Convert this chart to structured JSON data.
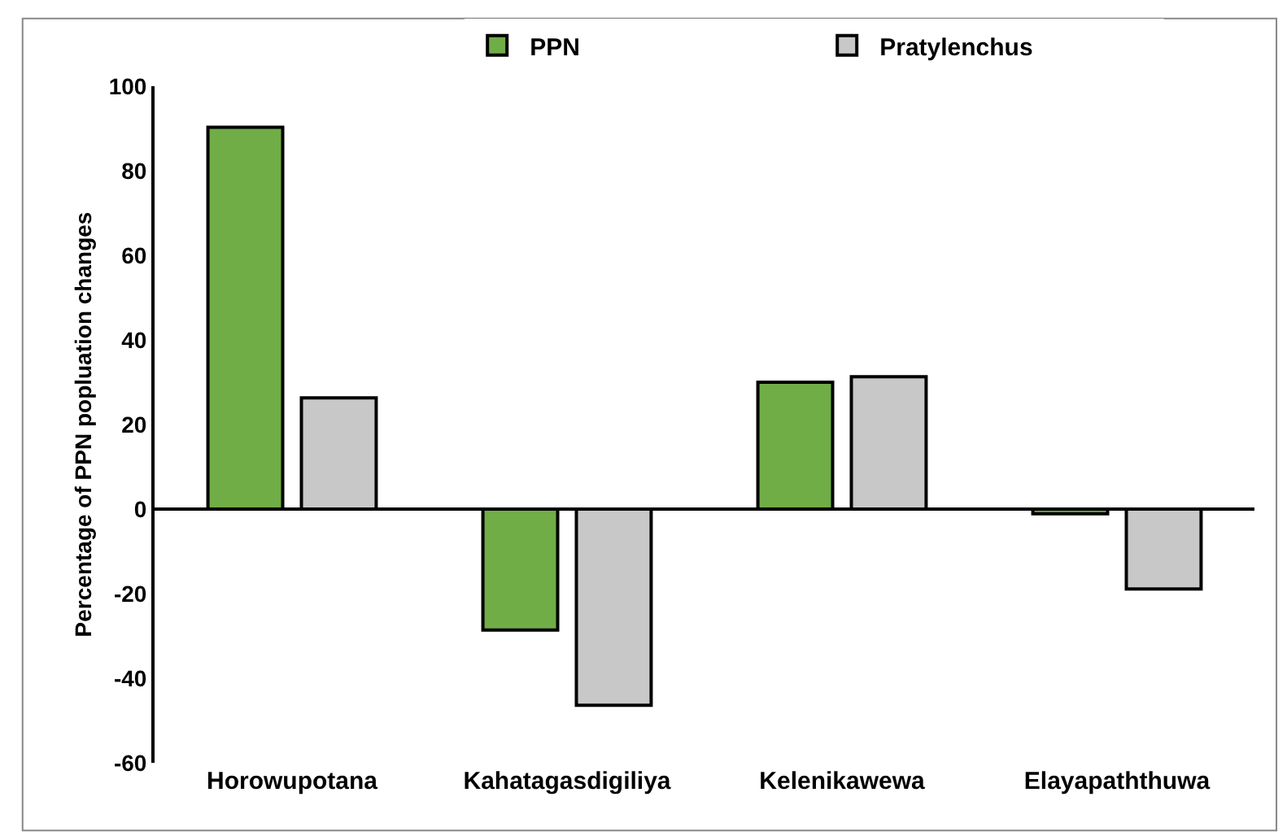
{
  "chart_data": {
    "type": "bar",
    "ylabel": "Percentage of PPN popluation changes",
    "categories": [
      "Horowupotana",
      "Kahatagasdigiliya",
      "Kelenikawewa",
      "Elayapaththuwa"
    ],
    "series": [
      {
        "name": "PPN",
        "color": "#70ad47",
        "values": [
          90.3,
          -28.6,
          30,
          -1.1
        ]
      },
      {
        "name": "Pratylenchus",
        "color": "#c8c8c8",
        "values": [
          26.3,
          -46.4,
          31.3,
          -18.9
        ]
      }
    ],
    "ylim": [
      -60,
      100
    ],
    "yticks": [
      -60,
      -40,
      -20,
      0,
      20,
      40,
      60,
      80,
      100
    ],
    "legend": "top"
  }
}
